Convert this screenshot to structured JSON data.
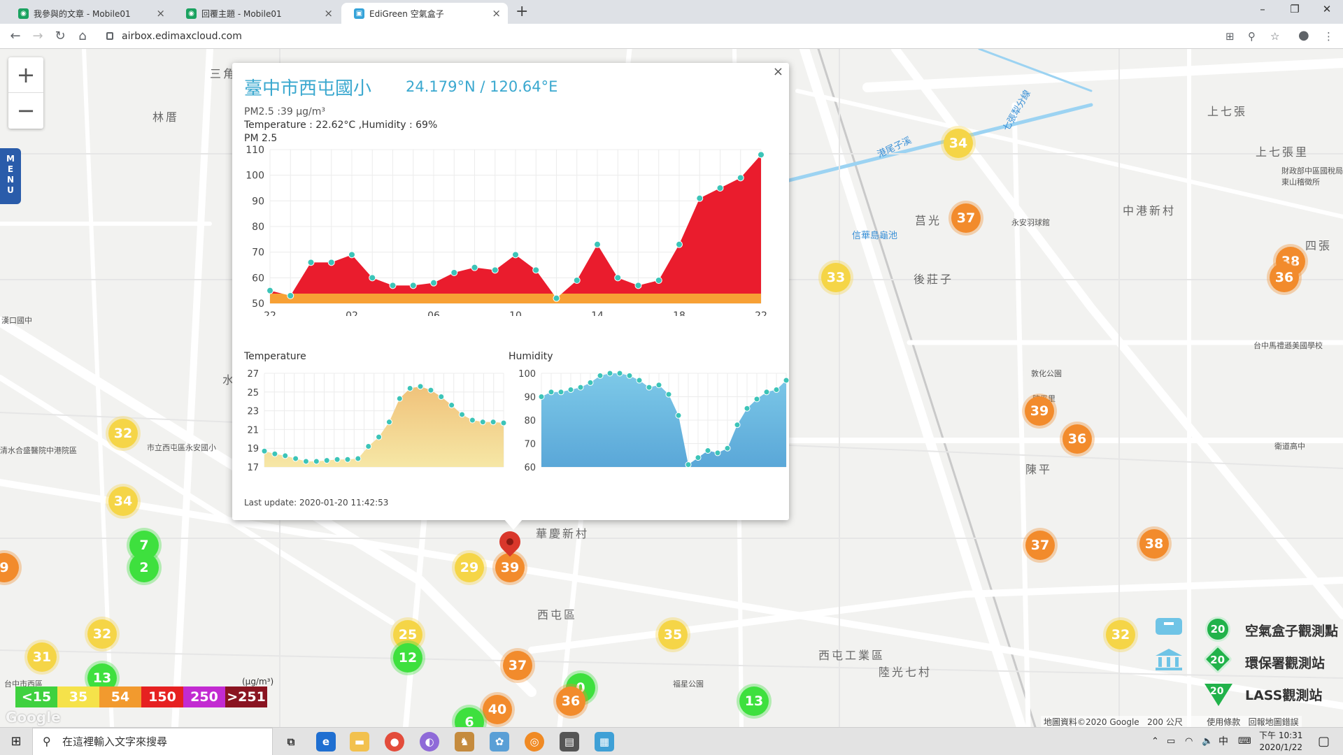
{
  "browser": {
    "tabs": [
      {
        "title": "我參與的文章 - Mobile01",
        "icon": "mobile01-favicon"
      },
      {
        "title": "回覆主題 - Mobile01",
        "icon": "mobile01-favicon"
      },
      {
        "title": "EdiGreen 空氣盒子",
        "icon": "edigreen-favicon"
      }
    ],
    "active_tab": 2,
    "url": "airbox.edimaxcloud.com"
  },
  "map": {
    "labels": [
      "林厝",
      "三角",
      "上七張",
      "上七張里",
      "中港新村",
      "四張",
      "後莊子",
      "莒光",
      "敦化公園",
      "陳平里",
      "陳平",
      "華慶新村",
      "西屯區",
      "西屯工業區",
      "陸光七村",
      "福星公園",
      "永安羽球館",
      "信華島龜池",
      "港尾子溪",
      "七張犁分線",
      "衛道高中",
      "台中馬禮遜美國學校",
      "財政部中區國稅局東山稽徵所",
      "市立西屯區永安國小",
      "漢口國中",
      "清水合盛醫院中港院區",
      "台中市西區",
      "水"
    ],
    "markers": [
      {
        "value": "34",
        "color": "yellow"
      },
      {
        "value": "37",
        "color": "orange"
      },
      {
        "value": "33",
        "color": "yellow"
      },
      {
        "value": "38",
        "color": "orange"
      },
      {
        "value": "36",
        "color": "orange"
      },
      {
        "value": "39",
        "color": "orange"
      },
      {
        "value": "36",
        "color": "orange"
      },
      {
        "value": "37",
        "color": "orange"
      },
      {
        "value": "38",
        "color": "orange"
      },
      {
        "value": "32",
        "color": "yellow"
      },
      {
        "value": "34",
        "color": "yellow"
      },
      {
        "value": "7",
        "color": "green"
      },
      {
        "value": "2",
        "color": "green"
      },
      {
        "value": "9",
        "color": "orange"
      },
      {
        "value": "29",
        "color": "yellow"
      },
      {
        "value": "39",
        "color": "orange"
      },
      {
        "value": "32",
        "color": "yellow"
      },
      {
        "value": "31",
        "color": "yellow"
      },
      {
        "value": "13",
        "color": "green"
      },
      {
        "value": "25",
        "color": "yellow"
      },
      {
        "value": "12",
        "color": "green"
      },
      {
        "value": "35",
        "color": "yellow"
      },
      {
        "value": "37",
        "color": "orange"
      },
      {
        "value": "0",
        "color": "green"
      },
      {
        "value": "36",
        "color": "orange"
      },
      {
        "value": "40",
        "color": "orange"
      },
      {
        "value": "6",
        "color": "green"
      },
      {
        "value": "13",
        "color": "green"
      },
      {
        "value": "32",
        "color": "yellow"
      }
    ],
    "menu_label": "MENU",
    "legend_scale": [
      {
        "label": "<15",
        "color": "#3fd13f"
      },
      {
        "label": "35",
        "color": "#f5e24a"
      },
      {
        "label": "54",
        "color": "#f29a2e"
      },
      {
        "label": "150",
        "color": "#e62121"
      },
      {
        "label": "250",
        "color": "#c22bd1"
      },
      {
        "label": ">251",
        "color": "#8a1421"
      }
    ],
    "legend_unit": "(μg/m³)",
    "station_legend": [
      {
        "badge": "20",
        "label": "空氣盒子觀測點"
      },
      {
        "badge": "20",
        "label": "環保署觀測站"
      },
      {
        "badge": "20",
        "label": "LASS觀測站"
      }
    ],
    "attribution": {
      "data": "地圖資料©2020 Google",
      "scale": "200 公尺",
      "terms": "使用條款",
      "report": "回報地圖錯誤"
    },
    "google": "Google"
  },
  "popup": {
    "title": "臺中市西屯國小",
    "coords": "24.179°N / 120.64°E",
    "pm25_line": "PM2.5 :39 μg/m³",
    "env_line": "Temperature : 22.62°C ,Humidity : 69%",
    "pm_chart_title": "PM 2.5",
    "temp_title": "Temperature",
    "hum_title": "Humidity",
    "last_update": "Last update: 2020-01-20 11:42:53",
    "close": "×"
  },
  "chart_data": [
    {
      "type": "area",
      "title": "PM 2.5",
      "x_ticks": [
        "22",
        "02",
        "06",
        "10",
        "14",
        "18",
        "22"
      ],
      "ylim": [
        50,
        110
      ],
      "y_ticks": [
        50,
        60,
        70,
        80,
        90,
        100,
        110
      ],
      "threshold": 54,
      "colors": {
        "below": "#f7a035",
        "above": "#ea1c2d",
        "point": "#3cc4b8"
      },
      "values": [
        55,
        53,
        66,
        66,
        69,
        60,
        57,
        57,
        58,
        62,
        64,
        63,
        69,
        63,
        52,
        59,
        73,
        60,
        57,
        59,
        73,
        91,
        95,
        99,
        108
      ]
    },
    {
      "type": "area",
      "title": "Temperature",
      "ylim": [
        17,
        27
      ],
      "y_ticks": [
        17,
        19,
        21,
        23,
        25,
        27
      ],
      "colors": {
        "fill_top": "#f0c27a",
        "fill_bottom": "#f6e7a6",
        "point": "#3cc4b8"
      },
      "values": [
        18.7,
        18.4,
        18.2,
        17.9,
        17.6,
        17.6,
        17.7,
        17.8,
        17.8,
        17.9,
        19.2,
        20.2,
        21.8,
        24.3,
        25.4,
        25.6,
        25.2,
        24.5,
        23.6,
        22.6,
        22.0,
        21.8,
        21.8,
        21.7
      ]
    },
    {
      "type": "area",
      "title": "Humidity",
      "ylim": [
        60,
        100
      ],
      "y_ticks": [
        60,
        70,
        80,
        90,
        100
      ],
      "colors": {
        "fill_top": "#7dc9e8",
        "fill_bottom": "#5aa7d8",
        "point": "#3cc4b8"
      },
      "values": [
        90,
        92,
        92,
        93,
        94,
        96,
        99,
        100,
        100,
        99,
        97,
        94,
        95,
        91,
        82,
        61,
        64,
        67,
        66,
        68,
        78,
        85,
        89,
        92,
        93,
        97
      ]
    }
  ],
  "taskbar": {
    "search_placeholder": "在這裡輸入文字來搜尋",
    "time": "下午 10:31",
    "date": "2020/1/22",
    "ime": "中"
  }
}
